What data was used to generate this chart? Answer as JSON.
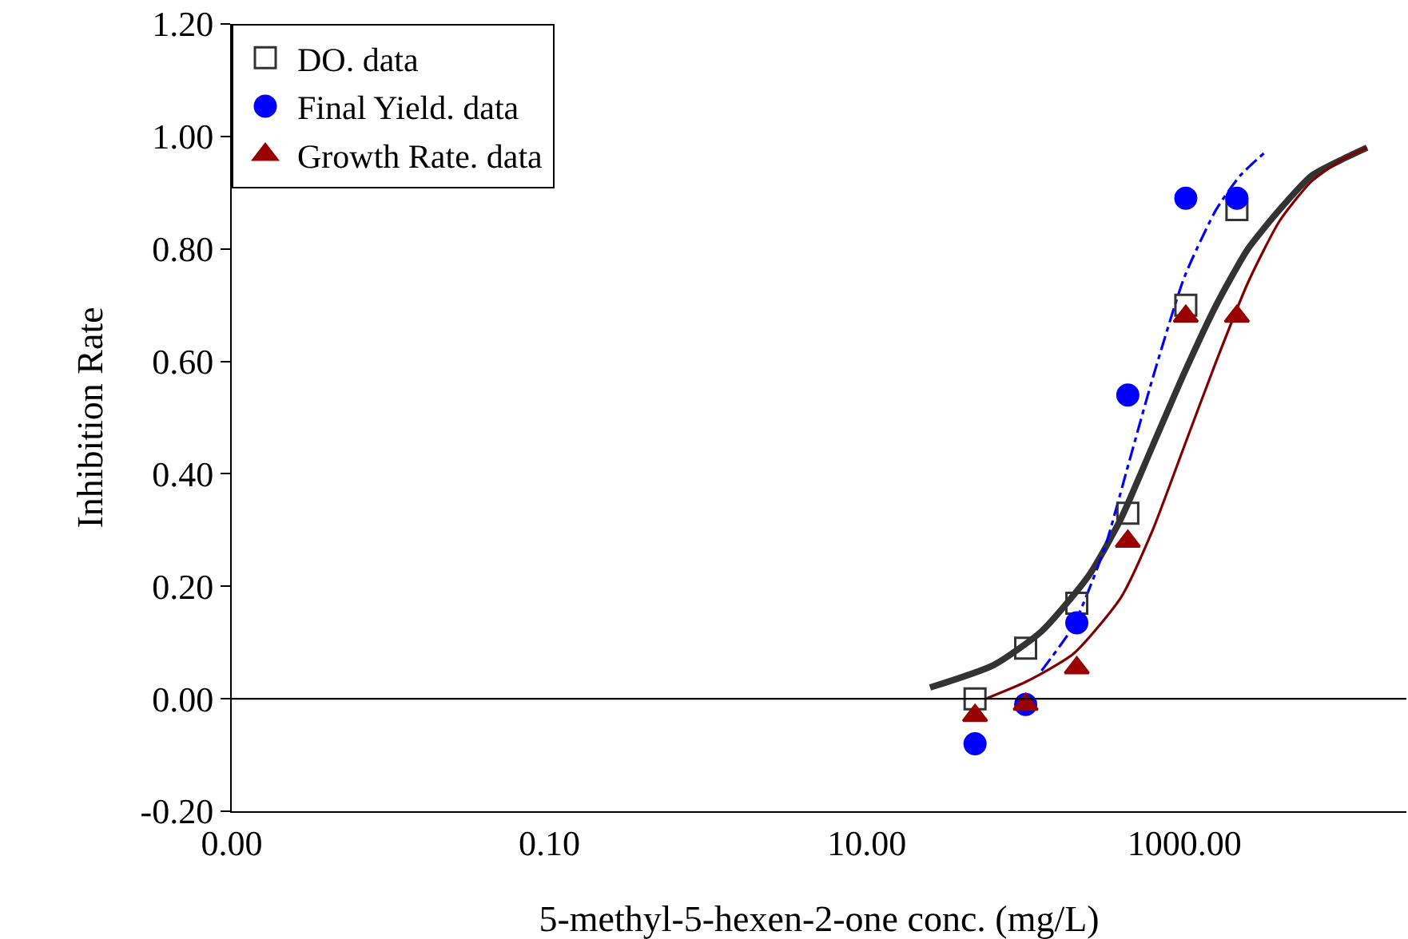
{
  "chart_data": {
    "type": "scatter",
    "xlabel": "5-methyl-5-hexen-2-one conc. (mg/L)",
    "ylabel": "Inhibition Rate",
    "log": "x",
    "xlim": [
      0.001,
      25000
    ],
    "xticks": [
      {
        "value": 0.001,
        "label": "0.00"
      },
      {
        "value": 0.1,
        "label": "0.10"
      },
      {
        "value": 10,
        "label": "10.00"
      },
      {
        "value": 1000,
        "label": "1000.00"
      }
    ],
    "ylim": [
      -0.2,
      1.2
    ],
    "yticks": [
      {
        "value": -0.2,
        "label": "-0.20"
      },
      {
        "value": 0,
        "label": "0.00"
      },
      {
        "value": 0.2,
        "label": "0.20"
      },
      {
        "value": 0.4,
        "label": "0.40"
      },
      {
        "value": 0.6,
        "label": "0.60"
      },
      {
        "value": 0.8,
        "label": "0.80"
      },
      {
        "value": 1,
        "label": "1.00"
      },
      {
        "value": 1.2,
        "label": "1.20"
      }
    ],
    "grid": false,
    "legend": "top left",
    "ref_lines": [
      {
        "axis": "y",
        "value": 0,
        "color": "#000000"
      }
    ],
    "series": [
      {
        "type": "line",
        "color": "#333333",
        "line_style": "solid",
        "marker": "none",
        "x": [
          25,
          63,
          126,
          251,
          398,
          631,
          1000,
          1585,
          2512,
          3981,
          6310,
          10000,
          14125
        ],
        "values": [
          0.02,
          0.06,
          0.12,
          0.22,
          0.32,
          0.45,
          0.58,
          0.7,
          0.8,
          0.87,
          0.93,
          0.96,
          0.98
        ]
      },
      {
        "type": "line",
        "color": "#0000ff",
        "line_style": "dashed",
        "marker": "none",
        "x": [
          126,
          200,
          316,
          447,
          631,
          1000,
          1585,
          2239,
          3162
        ],
        "values": [
          0.05,
          0.13,
          0.27,
          0.42,
          0.57,
          0.75,
          0.87,
          0.93,
          0.97
        ]
      },
      {
        "type": "line",
        "color": "#800000",
        "line_style": "solid",
        "marker": "none",
        "x": [
          56,
          100,
          200,
          398,
          631,
          1000,
          1585,
          2512,
          3981,
          6310,
          10000,
          14125
        ],
        "values": [
          0.0,
          0.03,
          0.08,
          0.18,
          0.3,
          0.45,
          0.6,
          0.74,
          0.85,
          0.92,
          0.96,
          0.98
        ]
      },
      {
        "name": "DO. data",
        "color": "#333333",
        "marker": "square",
        "x": [
          48,
          100,
          210,
          440,
          1020,
          2140
        ],
        "values": [
          0.0,
          0.09,
          0.17,
          0.33,
          0.7,
          0.87
        ]
      },
      {
        "name": "Final Yield. data",
        "color": "#0000ff",
        "marker": "circle",
        "x": [
          48,
          100,
          210,
          440,
          1020,
          2140
        ],
        "values": [
          -0.08,
          -0.01,
          0.135,
          0.54,
          0.89,
          0.89
        ]
      },
      {
        "name": "Growth Rate. data",
        "color": "#990000",
        "marker": "triangle",
        "x": [
          48,
          100,
          210,
          440,
          1020,
          2140
        ],
        "values": [
          -0.03,
          -0.01,
          0.055,
          0.28,
          0.68,
          0.68
        ]
      }
    ]
  }
}
